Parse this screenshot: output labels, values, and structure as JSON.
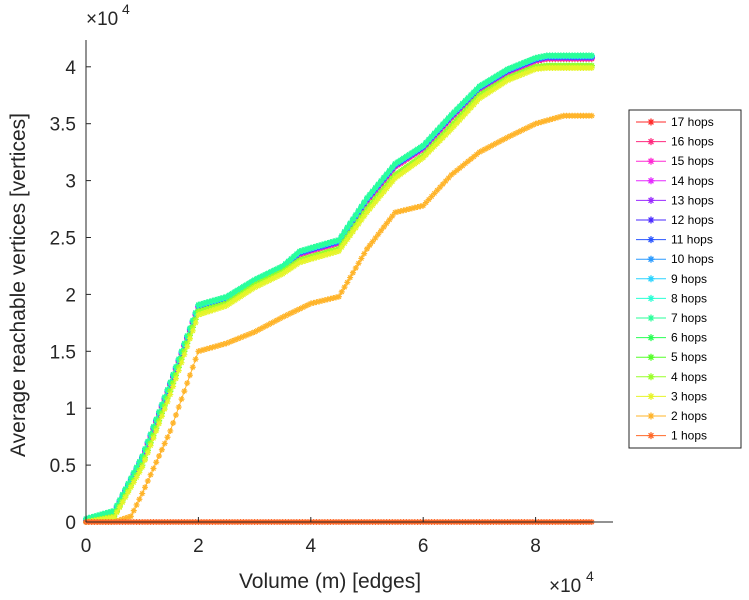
{
  "chart_data": {
    "type": "line",
    "xlabel": "Volume (m) [edges]",
    "ylabel": "Average reachable vertices [vertices]",
    "x_exponent_base": "×10",
    "x_exponent_power": "4",
    "y_exponent_base": "×10",
    "y_exponent_power": "4",
    "xlim": [
      0,
      9.2
    ],
    "ylim": [
      -0.1,
      4.25
    ],
    "xticks": [
      0,
      2,
      4,
      6,
      8
    ],
    "xtick_labels": [
      "0",
      "2",
      "4",
      "6",
      "8"
    ],
    "yticks": [
      0,
      0.5,
      1,
      1.5,
      2,
      2.5,
      3,
      3.5,
      4
    ],
    "ytick_labels": [
      "0",
      "0.5",
      "1",
      "1.5",
      "2",
      "2.5",
      "3",
      "3.5",
      "4"
    ],
    "legend_position": "right",
    "x_units_note": "values ×10^4",
    "series": [
      {
        "name": "17 hops",
        "color": "#ff2a2a",
        "shape": "high"
      },
      {
        "name": "16 hops",
        "color": "#ff2a7f",
        "shape": "high"
      },
      {
        "name": "15 hops",
        "color": "#ff2ad4",
        "shape": "high"
      },
      {
        "name": "14 hops",
        "color": "#e52aff",
        "shape": "high"
      },
      {
        "name": "13 hops",
        "color": "#9a2aff",
        "shape": "high"
      },
      {
        "name": "12 hops",
        "color": "#4a2aff",
        "shape": "high"
      },
      {
        "name": "11 hops",
        "color": "#2a55ff",
        "shape": "high"
      },
      {
        "name": "10 hops",
        "color": "#2a9aff",
        "shape": "high"
      },
      {
        "name": "9 hops",
        "color": "#2ad4ff",
        "shape": "high"
      },
      {
        "name": "8 hops",
        "color": "#2affd4",
        "shape": "high"
      },
      {
        "name": "7 hops",
        "color": "#2aff9a",
        "shape": "high"
      },
      {
        "name": "6 hops",
        "color": "#2aff55",
        "shape": "mid"
      },
      {
        "name": "5 hops",
        "color": "#55ff2a",
        "shape": "mid"
      },
      {
        "name": "4 hops",
        "color": "#9aff2a",
        "shape": "mid"
      },
      {
        "name": "3 hops",
        "color": "#e6f52a",
        "shape": "low3"
      },
      {
        "name": "2 hops",
        "color": "#ffb42a",
        "shape": "low2"
      },
      {
        "name": "1 hops",
        "color": "#ff6a2a",
        "shape": "zero"
      }
    ],
    "curves": {
      "high": {
        "x": [
          0,
          0.5,
          1,
          1.5,
          2,
          2.5,
          3,
          3.5,
          3.8,
          4,
          4.5,
          5,
          5.5,
          6,
          6.5,
          7,
          7.5,
          8,
          8.2,
          9
        ],
        "y": [
          0,
          0.07,
          0.55,
          1.2,
          1.88,
          1.95,
          2.1,
          2.22,
          2.35,
          2.38,
          2.45,
          2.82,
          3.12,
          3.28,
          3.55,
          3.8,
          3.95,
          4.05,
          4.07,
          4.07
        ]
      },
      "mid": {
        "x": [
          0,
          0.5,
          1,
          1.5,
          2,
          2.5,
          3,
          3.5,
          3.8,
          4,
          4.5,
          5,
          5.5,
          6,
          6.5,
          7,
          7.5,
          8,
          8.2,
          9
        ],
        "y": [
          0,
          0.05,
          0.5,
          1.15,
          1.85,
          1.92,
          2.08,
          2.2,
          2.3,
          2.33,
          2.4,
          2.75,
          3.05,
          3.22,
          3.48,
          3.75,
          3.9,
          4.0,
          4.01,
          4.01
        ]
      },
      "low3": {
        "x": [
          0,
          0.5,
          1,
          1.5,
          2,
          2.5,
          3,
          3.5,
          3.8,
          4,
          4.5,
          5,
          5.5,
          6,
          6.5,
          7,
          7.5,
          8,
          8.2,
          9
        ],
        "y": [
          0,
          0.04,
          0.48,
          1.12,
          1.82,
          1.9,
          2.06,
          2.18,
          2.28,
          2.31,
          2.38,
          2.72,
          3.02,
          3.2,
          3.45,
          3.72,
          3.88,
          3.98,
          3.99,
          3.99
        ]
      },
      "low2": {
        "x": [
          0,
          0.5,
          0.8,
          1,
          1.5,
          2,
          2.5,
          3,
          3.5,
          4,
          4.5,
          5,
          5.5,
          6,
          6.5,
          7,
          7.5,
          8,
          8.5,
          9
        ],
        "y": [
          0,
          0,
          0.05,
          0.25,
          0.8,
          1.5,
          1.57,
          1.67,
          1.8,
          1.92,
          1.98,
          2.4,
          2.72,
          2.78,
          3.05,
          3.25,
          3.38,
          3.5,
          3.57,
          3.57
        ]
      },
      "zero": {
        "x": [
          0,
          9
        ],
        "y": [
          0,
          0
        ]
      }
    }
  }
}
